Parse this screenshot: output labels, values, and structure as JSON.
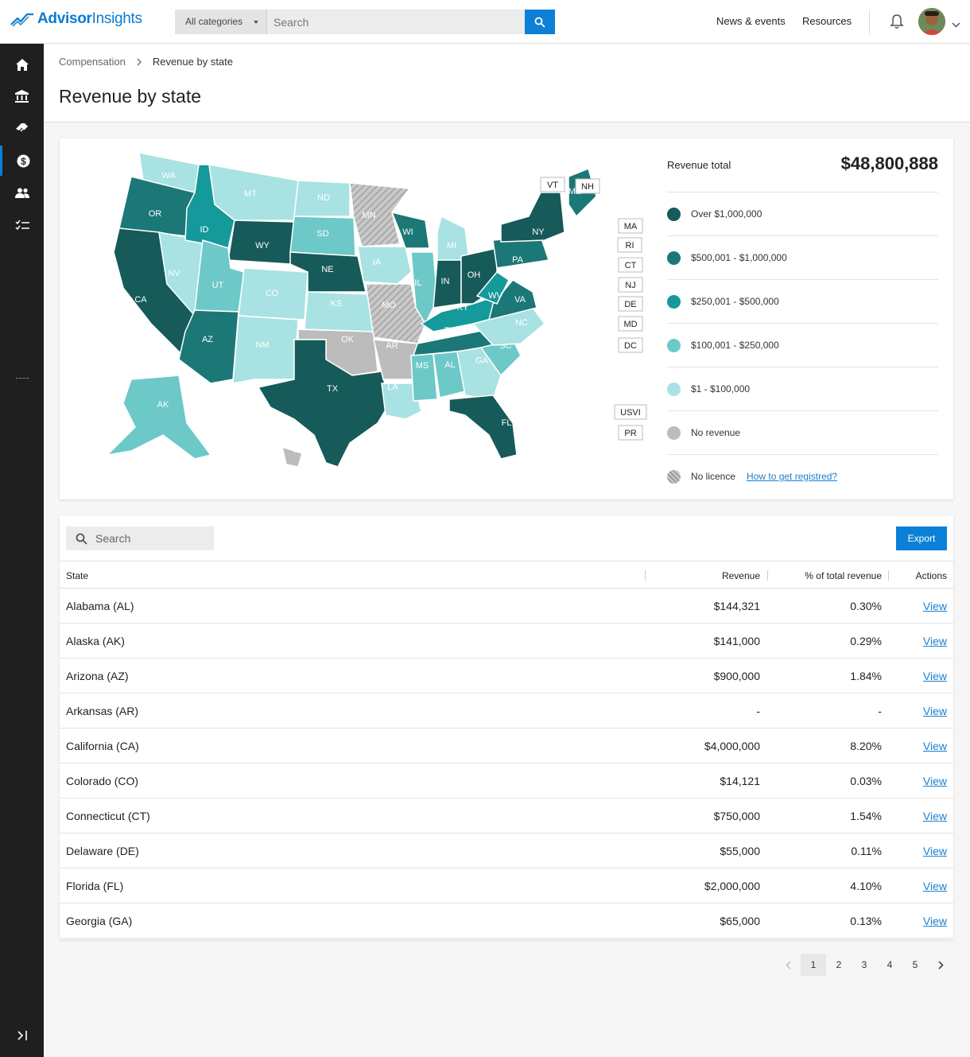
{
  "app": {
    "logo_bold": "Advisor",
    "logo_regular": "Insights"
  },
  "search": {
    "category": "All categories",
    "placeholder": "Search"
  },
  "nav": {
    "news": "News & events",
    "resources": "Resources"
  },
  "sidebar": {
    "items": [
      "home-icon",
      "bank-icon",
      "handshake-icon",
      "dollar-icon",
      "people-icon",
      "checklist-icon"
    ],
    "active": "dollar-icon"
  },
  "breadcrumb": {
    "parent": "Compensation",
    "current": "Revenue by state"
  },
  "page": {
    "title": "Revenue by state"
  },
  "legend": {
    "total_label": "Revenue total",
    "total_value": "$48,800,888",
    "items": [
      {
        "label": "Over $1,000,000",
        "color": "#165a5a"
      },
      {
        "label": "$500,001 - $1,000,000",
        "color": "#1c7777"
      },
      {
        "label": "$250,001 - $500,000",
        "color": "#15999b"
      },
      {
        "label": "$100,001 - $250,000",
        "color": "#6cc9c8"
      },
      {
        "label": "$1 - $100,000",
        "color": "#a8e2e2"
      },
      {
        "label": "No revenue",
        "color": "#bcbcbc"
      },
      {
        "label": "No licence",
        "color": "hatch"
      }
    ],
    "link": "How to get registred?"
  },
  "map": {
    "states": {
      "WA": "light",
      "OR": "med",
      "CA": "dark",
      "NV": "light",
      "ID": "teal",
      "MT": "light",
      "WY": "dark",
      "UT": "lm",
      "AZ": "med",
      "CO": "light",
      "NM": "light",
      "ND": "light",
      "SD": "lm",
      "NE": "dark",
      "KS": "light",
      "OK": "gray",
      "TX": "dark",
      "MN": "hatch",
      "IA": "light",
      "MO": "hatch",
      "AR": "gray",
      "LA": "light",
      "WI": "med",
      "IL": "lm",
      "MI": "light",
      "IN": "dark",
      "OH": "dark",
      "KY": "teal",
      "TN": "med",
      "MS": "lm",
      "AL": "lm",
      "GA": "light",
      "FL": "dark",
      "SC": "lm",
      "NC": "light",
      "VA": "med",
      "WV": "teal",
      "PA": "med",
      "NY": "dark",
      "ME": "med",
      "AK": "lm",
      "HI": "gray"
    },
    "callouts": [
      "VT",
      "NH",
      "MA",
      "RI",
      "CT",
      "NJ",
      "DE",
      "MD",
      "DC",
      "USVI",
      "PR"
    ]
  },
  "table": {
    "search_placeholder": "Search",
    "export_label": "Export",
    "headers": {
      "state": "State",
      "revenue": "Revenue",
      "pct": "% of total revenue",
      "actions": "Actions"
    },
    "rows": [
      {
        "state": "Alabama (AL)",
        "revenue": "$144,321",
        "pct": "0.30%",
        "action": "View"
      },
      {
        "state": "Alaska (AK)",
        "revenue": "$141,000",
        "pct": "0.29%",
        "action": "View"
      },
      {
        "state": "Arizona (AZ)",
        "revenue": "$900,000",
        "pct": "1.84%",
        "action": "View"
      },
      {
        "state": "Arkansas (AR)",
        "revenue": "-",
        "pct": "-",
        "action": "View"
      },
      {
        "state": "California (CA)",
        "revenue": "$4,000,000",
        "pct": "8.20%",
        "action": "View"
      },
      {
        "state": "Colorado (CO)",
        "revenue": "$14,121",
        "pct": "0.03%",
        "action": "View"
      },
      {
        "state": "Connecticut (CT)",
        "revenue": "$750,000",
        "pct": "1.54%",
        "action": "View"
      },
      {
        "state": "Delaware (DE)",
        "revenue": "$55,000",
        "pct": "0.11%",
        "action": "View"
      },
      {
        "state": "Florida (FL)",
        "revenue": "$2,000,000",
        "pct": "4.10%",
        "action": "View"
      },
      {
        "state": "Georgia (GA)",
        "revenue": "$65,000",
        "pct": "0.13%",
        "action": "View"
      }
    ]
  },
  "pagination": {
    "pages": [
      "1",
      "2",
      "3",
      "4",
      "5"
    ],
    "current": "1"
  }
}
